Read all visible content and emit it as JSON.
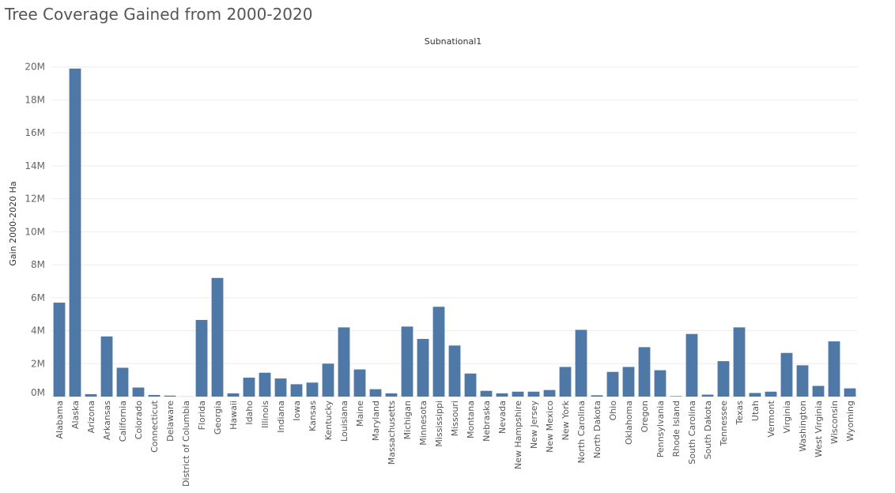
{
  "chart_data": {
    "type": "bar",
    "title": "Tree Coverage Gained from 2000-2020",
    "column_header": "Subnational1",
    "ylabel": "Gain 2000-2020 Ha",
    "xlabel": "",
    "ylim": [
      0,
      20800000
    ],
    "yticks": [
      0,
      2000000,
      4000000,
      6000000,
      8000000,
      10000000,
      12000000,
      14000000,
      16000000,
      18000000,
      20000000
    ],
    "ytick_labels": [
      "0M",
      "2M",
      "4M",
      "6M",
      "8M",
      "10M",
      "12M",
      "14M",
      "16M",
      "18M",
      "20M"
    ],
    "grid": true,
    "bar_color": "#4e79a7",
    "categories": [
      "Alabama",
      "Alaska",
      "Arizona",
      "Arkansas",
      "California",
      "Colorado",
      "Connecticut",
      "Delaware",
      "District of Columbia",
      "Florida",
      "Georgia",
      "Hawaii",
      "Idaho",
      "Illinois",
      "Indiana",
      "Iowa",
      "Kansas",
      "Kentucky",
      "Louisiana",
      "Maine",
      "Maryland",
      "Massachusetts",
      "Michigan",
      "Minnesota",
      "Mississippi",
      "Missouri",
      "Montana",
      "Nebraska",
      "Nevada",
      "New Hampshire",
      "New Jersey",
      "New Mexico",
      "New York",
      "North Carolina",
      "North Dakota",
      "Ohio",
      "Oklahoma",
      "Oregon",
      "Pennsylvania",
      "Rhode Island",
      "South Carolina",
      "South Dakota",
      "Tennessee",
      "Texas",
      "Utah",
      "Vermont",
      "Virginia",
      "Washington",
      "West Virginia",
      "Wisconsin",
      "Wyoming"
    ],
    "values": [
      5700000,
      19900000,
      150000,
      3650000,
      1750000,
      550000,
      100000,
      60000,
      5000,
      4650000,
      7200000,
      200000,
      1150000,
      1450000,
      1100000,
      750000,
      850000,
      2000000,
      4200000,
      1650000,
      450000,
      200000,
      4250000,
      3500000,
      5450000,
      3100000,
      1400000,
      350000,
      200000,
      300000,
      300000,
      400000,
      1800000,
      4050000,
      80000,
      1500000,
      1800000,
      3000000,
      1600000,
      30000,
      3800000,
      120000,
      2150000,
      4200000,
      220000,
      300000,
      2650000,
      1900000,
      650000,
      3350000,
      500000
    ]
  }
}
